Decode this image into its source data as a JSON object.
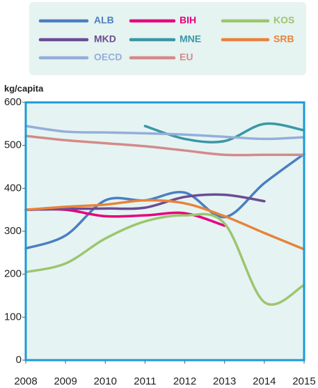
{
  "chart_data": {
    "type": "line",
    "y_label": "kg/capita",
    "x": [
      2008,
      2009,
      2010,
      2011,
      2012,
      2013,
      2014,
      2015
    ],
    "xlim": [
      2008,
      2015
    ],
    "xticks": [
      2008,
      2009,
      2010,
      2011,
      2012,
      2013,
      2014,
      2015
    ],
    "ylim": [
      0,
      600
    ],
    "yticks": [
      0,
      100,
      200,
      300,
      400,
      500,
      600
    ],
    "legend": "top",
    "series": [
      {
        "name": "ALB",
        "color": "#4a7fc1",
        "values": [
          260,
          290,
          372,
          372,
          390,
          333,
          412,
          480
        ]
      },
      {
        "name": "BIH",
        "color": "#e6007e",
        "values": [
          350,
          350,
          335,
          337,
          342,
          313,
          null,
          null
        ]
      },
      {
        "name": "KOS",
        "color": "#9dc56f",
        "values": [
          205,
          225,
          283,
          323,
          337,
          318,
          135,
          175
        ]
      },
      {
        "name": "MKD",
        "color": "#6a4c93",
        "values": [
          350,
          352,
          353,
          355,
          380,
          385,
          370,
          null
        ]
      },
      {
        "name": "MNE",
        "color": "#3a97a6",
        "values": [
          null,
          null,
          null,
          545,
          515,
          510,
          550,
          535
        ]
      },
      {
        "name": "SRB",
        "color": "#e8833a",
        "values": [
          350,
          357,
          362,
          372,
          365,
          335,
          296,
          258
        ]
      },
      {
        "name": "OECD",
        "color": "#94aedb",
        "values": [
          545,
          532,
          530,
          528,
          525,
          520,
          515,
          519
        ]
      },
      {
        "name": "EU",
        "color": "#d48a8a",
        "values": [
          522,
          512,
          505,
          498,
          488,
          478,
          478,
          478
        ]
      }
    ]
  }
}
